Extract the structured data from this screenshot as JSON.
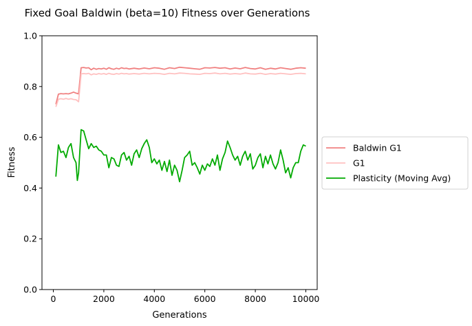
{
  "chart_data": {
    "type": "line",
    "title": "Fixed Goal Baldwin (beta=10) Fitness over Generations",
    "xlabel": "Generations",
    "ylabel": "Fitness",
    "xlim": [
      -450,
      10450
    ],
    "ylim": [
      0.0,
      1.0
    ],
    "xticks": [
      0,
      2000,
      4000,
      6000,
      8000,
      10000
    ],
    "yticks": [
      0.0,
      0.2,
      0.4,
      0.6,
      0.8,
      1.0
    ],
    "xtick_labels": [
      "0",
      "2000",
      "4000",
      "6000",
      "8000",
      "10000"
    ],
    "ytick_labels": [
      "0.0",
      "0.2",
      "0.4",
      "0.6",
      "0.8",
      "1.0"
    ],
    "grid": false,
    "legend_position": "right-outside",
    "series": [
      {
        "name": "Baldwin G1",
        "color": "#f08080",
        "points": [
          [
            100,
            0.73
          ],
          [
            200,
            0.77
          ],
          [
            300,
            0.772
          ],
          [
            400,
            0.771
          ],
          [
            500,
            0.772
          ],
          [
            600,
            0.771
          ],
          [
            700,
            0.774
          ],
          [
            800,
            0.778
          ],
          [
            900,
            0.774
          ],
          [
            1000,
            0.771
          ],
          [
            1100,
            0.874
          ],
          [
            1200,
            0.875
          ],
          [
            1300,
            0.873
          ],
          [
            1400,
            0.874
          ],
          [
            1500,
            0.866
          ],
          [
            1600,
            0.872
          ],
          [
            1700,
            0.868
          ],
          [
            1800,
            0.871
          ],
          [
            1900,
            0.869
          ],
          [
            2000,
            0.872
          ],
          [
            2100,
            0.868
          ],
          [
            2200,
            0.874
          ],
          [
            2300,
            0.87
          ],
          [
            2400,
            0.868
          ],
          [
            2500,
            0.872
          ],
          [
            2600,
            0.869
          ],
          [
            2700,
            0.874
          ],
          [
            2800,
            0.871
          ],
          [
            2900,
            0.872
          ],
          [
            3000,
            0.869
          ],
          [
            3200,
            0.872
          ],
          [
            3400,
            0.869
          ],
          [
            3600,
            0.873
          ],
          [
            3800,
            0.87
          ],
          [
            4000,
            0.874
          ],
          [
            4200,
            0.872
          ],
          [
            4400,
            0.868
          ],
          [
            4600,
            0.874
          ],
          [
            4800,
            0.871
          ],
          [
            5000,
            0.876
          ],
          [
            5200,
            0.874
          ],
          [
            5400,
            0.872
          ],
          [
            5600,
            0.87
          ],
          [
            5800,
            0.868
          ],
          [
            6000,
            0.874
          ],
          [
            6200,
            0.873
          ],
          [
            6400,
            0.875
          ],
          [
            6600,
            0.872
          ],
          [
            6800,
            0.874
          ],
          [
            7000,
            0.869
          ],
          [
            7200,
            0.873
          ],
          [
            7400,
            0.87
          ],
          [
            7600,
            0.875
          ],
          [
            7800,
            0.871
          ],
          [
            8000,
            0.869
          ],
          [
            8200,
            0.874
          ],
          [
            8400,
            0.868
          ],
          [
            8600,
            0.872
          ],
          [
            8800,
            0.869
          ],
          [
            9000,
            0.874
          ],
          [
            9200,
            0.871
          ],
          [
            9400,
            0.868
          ],
          [
            9600,
            0.872
          ],
          [
            9800,
            0.874
          ],
          [
            10000,
            0.872
          ]
        ]
      },
      {
        "name": "G1",
        "color": "#ffc0c0",
        "points": [
          [
            100,
            0.72
          ],
          [
            200,
            0.75
          ],
          [
            300,
            0.752
          ],
          [
            400,
            0.75
          ],
          [
            500,
            0.753
          ],
          [
            600,
            0.75
          ],
          [
            700,
            0.752
          ],
          [
            800,
            0.749
          ],
          [
            900,
            0.748
          ],
          [
            1000,
            0.74
          ],
          [
            1100,
            0.85
          ],
          [
            1200,
            0.851
          ],
          [
            1300,
            0.85
          ],
          [
            1400,
            0.852
          ],
          [
            1500,
            0.846
          ],
          [
            1600,
            0.85
          ],
          [
            1700,
            0.848
          ],
          [
            1800,
            0.851
          ],
          [
            1900,
            0.849
          ],
          [
            2000,
            0.851
          ],
          [
            2100,
            0.848
          ],
          [
            2200,
            0.852
          ],
          [
            2300,
            0.849
          ],
          [
            2400,
            0.848
          ],
          [
            2500,
            0.851
          ],
          [
            2600,
            0.849
          ],
          [
            2700,
            0.852
          ],
          [
            2800,
            0.85
          ],
          [
            2900,
            0.851
          ],
          [
            3000,
            0.849
          ],
          [
            3200,
            0.851
          ],
          [
            3400,
            0.849
          ],
          [
            3600,
            0.852
          ],
          [
            3800,
            0.85
          ],
          [
            4000,
            0.852
          ],
          [
            4200,
            0.851
          ],
          [
            4400,
            0.848
          ],
          [
            4600,
            0.852
          ],
          [
            4800,
            0.85
          ],
          [
            5000,
            0.853
          ],
          [
            5200,
            0.852
          ],
          [
            5400,
            0.85
          ],
          [
            5600,
            0.849
          ],
          [
            5800,
            0.848
          ],
          [
            6000,
            0.852
          ],
          [
            6200,
            0.851
          ],
          [
            6400,
            0.853
          ],
          [
            6600,
            0.85
          ],
          [
            6800,
            0.852
          ],
          [
            7000,
            0.849
          ],
          [
            7200,
            0.851
          ],
          [
            7400,
            0.849
          ],
          [
            7600,
            0.853
          ],
          [
            7800,
            0.85
          ],
          [
            8000,
            0.849
          ],
          [
            8200,
            0.852
          ],
          [
            8400,
            0.848
          ],
          [
            8600,
            0.851
          ],
          [
            8800,
            0.849
          ],
          [
            9000,
            0.852
          ],
          [
            9200,
            0.85
          ],
          [
            9400,
            0.848
          ],
          [
            9600,
            0.851
          ],
          [
            9800,
            0.852
          ],
          [
            10000,
            0.85
          ]
        ]
      },
      {
        "name": "Plasticity (Moving Avg)",
        "color": "#00aa00",
        "points": [
          [
            100,
            0.445
          ],
          [
            200,
            0.57
          ],
          [
            300,
            0.54
          ],
          [
            400,
            0.545
          ],
          [
            500,
            0.52
          ],
          [
            600,
            0.56
          ],
          [
            700,
            0.575
          ],
          [
            800,
            0.52
          ],
          [
            900,
            0.5
          ],
          [
            950,
            0.43
          ],
          [
            1000,
            0.46
          ],
          [
            1100,
            0.63
          ],
          [
            1200,
            0.625
          ],
          [
            1300,
            0.59
          ],
          [
            1400,
            0.555
          ],
          [
            1500,
            0.575
          ],
          [
            1600,
            0.56
          ],
          [
            1700,
            0.565
          ],
          [
            1800,
            0.55
          ],
          [
            1900,
            0.545
          ],
          [
            2000,
            0.53
          ],
          [
            2100,
            0.53
          ],
          [
            2200,
            0.48
          ],
          [
            2300,
            0.52
          ],
          [
            2400,
            0.515
          ],
          [
            2500,
            0.49
          ],
          [
            2600,
            0.485
          ],
          [
            2700,
            0.53
          ],
          [
            2800,
            0.54
          ],
          [
            2900,
            0.51
          ],
          [
            3000,
            0.525
          ],
          [
            3100,
            0.49
          ],
          [
            3200,
            0.535
          ],
          [
            3300,
            0.55
          ],
          [
            3400,
            0.52
          ],
          [
            3500,
            0.555
          ],
          [
            3600,
            0.575
          ],
          [
            3700,
            0.59
          ],
          [
            3800,
            0.56
          ],
          [
            3900,
            0.5
          ],
          [
            4000,
            0.515
          ],
          [
            4100,
            0.495
          ],
          [
            4200,
            0.51
          ],
          [
            4300,
            0.47
          ],
          [
            4400,
            0.505
          ],
          [
            4500,
            0.465
          ],
          [
            4600,
            0.51
          ],
          [
            4700,
            0.45
          ],
          [
            4800,
            0.49
          ],
          [
            4900,
            0.47
          ],
          [
            5000,
            0.425
          ],
          [
            5100,
            0.47
          ],
          [
            5200,
            0.52
          ],
          [
            5300,
            0.53
          ],
          [
            5400,
            0.545
          ],
          [
            5500,
            0.49
          ],
          [
            5600,
            0.5
          ],
          [
            5700,
            0.48
          ],
          [
            5800,
            0.455
          ],
          [
            5900,
            0.49
          ],
          [
            6000,
            0.47
          ],
          [
            6100,
            0.495
          ],
          [
            6200,
            0.485
          ],
          [
            6300,
            0.515
          ],
          [
            6400,
            0.49
          ],
          [
            6500,
            0.53
          ],
          [
            6600,
            0.47
          ],
          [
            6700,
            0.515
          ],
          [
            6800,
            0.54
          ],
          [
            6900,
            0.585
          ],
          [
            7000,
            0.56
          ],
          [
            7100,
            0.53
          ],
          [
            7200,
            0.51
          ],
          [
            7300,
            0.525
          ],
          [
            7400,
            0.49
          ],
          [
            7500,
            0.525
          ],
          [
            7600,
            0.545
          ],
          [
            7700,
            0.51
          ],
          [
            7800,
            0.535
          ],
          [
            7900,
            0.475
          ],
          [
            8000,
            0.49
          ],
          [
            8100,
            0.52
          ],
          [
            8200,
            0.535
          ],
          [
            8300,
            0.48
          ],
          [
            8400,
            0.525
          ],
          [
            8500,
            0.495
          ],
          [
            8600,
            0.53
          ],
          [
            8700,
            0.495
          ],
          [
            8800,
            0.475
          ],
          [
            8900,
            0.5
          ],
          [
            9000,
            0.55
          ],
          [
            9100,
            0.51
          ],
          [
            9200,
            0.46
          ],
          [
            9300,
            0.48
          ],
          [
            9400,
            0.44
          ],
          [
            9500,
            0.48
          ],
          [
            9600,
            0.5
          ],
          [
            9700,
            0.5
          ],
          [
            9800,
            0.545
          ],
          [
            9900,
            0.57
          ],
          [
            10000,
            0.565
          ]
        ]
      }
    ]
  }
}
